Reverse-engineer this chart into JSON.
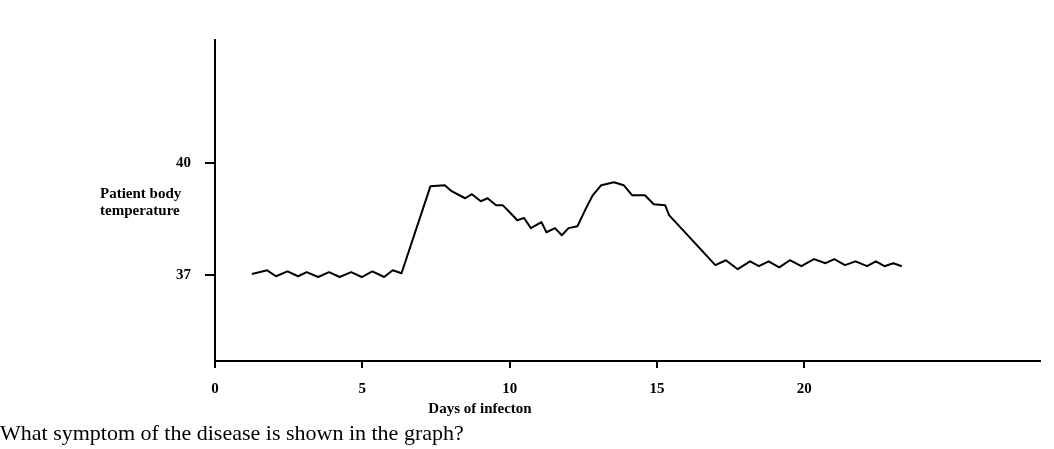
{
  "chart_data": {
    "type": "line",
    "xlabel": "Days of infecton",
    "ylabel": "Patient body temperature",
    "annotations": [
      "What symptom of the disease is shown in the graph?"
    ],
    "x": [
      1.25,
      1.77,
      2.07,
      2.46,
      2.82,
      3.11,
      3.5,
      3.87,
      4.23,
      4.62,
      4.98,
      5.34,
      5.74,
      6.03,
      6.33,
      7.31,
      7.8,
      8.03,
      8.49,
      8.72,
      9.02,
      9.25,
      9.54,
      9.77,
      9.97,
      10.26,
      10.49,
      10.72,
      11.08,
      11.25,
      11.54,
      11.77,
      12.0,
      12.3,
      12.59,
      12.82,
      13.11,
      13.54,
      13.87,
      14.16,
      14.59,
      14.89,
      15.28,
      15.41,
      16.98,
      17.34,
      17.74,
      18.16,
      18.46,
      18.79,
      19.15,
      19.51,
      19.9,
      20.33,
      20.72,
      21.02,
      21.38,
      21.74,
      22.13,
      22.43,
      22.72,
      23.02,
      23.31
    ],
    "values": [
      37.03,
      37.13,
      36.97,
      37.1,
      36.97,
      37.08,
      36.95,
      37.08,
      36.95,
      37.08,
      36.95,
      37.1,
      36.95,
      37.13,
      37.05,
      39.38,
      39.41,
      39.25,
      39.06,
      39.17,
      38.98,
      39.06,
      38.87,
      38.87,
      38.71,
      38.47,
      38.53,
      38.26,
      38.42,
      38.15,
      38.26,
      38.07,
      38.26,
      38.31,
      38.79,
      39.14,
      39.41,
      39.49,
      39.41,
      39.14,
      39.14,
      38.9,
      38.87,
      38.61,
      37.27,
      37.4,
      37.16,
      37.37,
      37.24,
      37.37,
      37.21,
      37.4,
      37.24,
      37.43,
      37.32,
      37.43,
      37.27,
      37.37,
      37.24,
      37.37,
      37.24,
      37.32,
      37.24
    ],
    "color": "#000000",
    "xlim": [
      0,
      28
    ],
    "ylim": [
      34.7,
      43.3
    ],
    "xticks": [
      0,
      5,
      10,
      15,
      20
    ],
    "yticks": [
      37,
      40
    ]
  }
}
